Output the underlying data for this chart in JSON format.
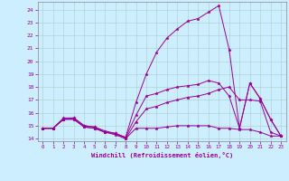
{
  "xlabel": "Windchill (Refroidissement éolien,°C)",
  "bg_color": "#cceeff",
  "line_color": "#990099",
  "grid_color": "#aacccc",
  "xlim": [
    -0.5,
    23.5
  ],
  "ylim": [
    13.8,
    24.6
  ],
  "yticks": [
    14,
    15,
    16,
    17,
    18,
    19,
    20,
    21,
    22,
    23,
    24
  ],
  "xticks": [
    0,
    1,
    2,
    3,
    4,
    5,
    6,
    7,
    8,
    9,
    10,
    11,
    12,
    13,
    14,
    15,
    16,
    17,
    18,
    19,
    20,
    21,
    22,
    23
  ],
  "series": [
    {
      "x": [
        0,
        1,
        2,
        3,
        4,
        5,
        6,
        7,
        8,
        9,
        10,
        11,
        12,
        13,
        14,
        15,
        16,
        17,
        18,
        19,
        20,
        21,
        22,
        23
      ],
      "y": [
        14.8,
        14.8,
        15.5,
        15.5,
        14.9,
        14.8,
        14.5,
        14.4,
        14.0,
        14.8,
        14.8,
        14.8,
        14.9,
        15.0,
        15.0,
        15.0,
        15.0,
        14.8,
        14.8,
        14.7,
        14.7,
        14.5,
        14.2,
        14.2
      ]
    },
    {
      "x": [
        0,
        1,
        2,
        3,
        4,
        5,
        6,
        7,
        8,
        9,
        10,
        11,
        12,
        13,
        14,
        15,
        16,
        17,
        18,
        19,
        20,
        21,
        22,
        23
      ],
      "y": [
        14.8,
        14.8,
        15.5,
        15.5,
        14.9,
        14.8,
        14.5,
        14.3,
        14.0,
        15.3,
        16.3,
        16.5,
        16.8,
        17.0,
        17.2,
        17.3,
        17.5,
        17.8,
        18.0,
        17.0,
        17.0,
        16.9,
        14.5,
        14.2
      ]
    },
    {
      "x": [
        0,
        1,
        2,
        3,
        4,
        5,
        6,
        7,
        8,
        9,
        10,
        11,
        12,
        13,
        14,
        15,
        16,
        17,
        18,
        19,
        20,
        21,
        22,
        23
      ],
      "y": [
        14.8,
        14.8,
        15.5,
        15.6,
        15.0,
        14.9,
        14.5,
        14.4,
        14.1,
        15.8,
        17.3,
        17.5,
        17.8,
        18.0,
        18.1,
        18.2,
        18.5,
        18.3,
        17.3,
        14.8,
        18.3,
        17.1,
        15.5,
        14.2
      ]
    },
    {
      "x": [
        0,
        1,
        2,
        3,
        4,
        5,
        6,
        7,
        8,
        9,
        10,
        11,
        12,
        13,
        14,
        15,
        16,
        17,
        18,
        19,
        20,
        21,
        22,
        23
      ],
      "y": [
        14.8,
        14.8,
        15.6,
        15.6,
        15.0,
        14.9,
        14.6,
        14.4,
        14.1,
        16.8,
        19.0,
        20.7,
        21.8,
        22.5,
        23.1,
        23.3,
        23.8,
        24.3,
        20.9,
        14.8,
        18.3,
        17.1,
        15.5,
        14.2
      ]
    }
  ]
}
